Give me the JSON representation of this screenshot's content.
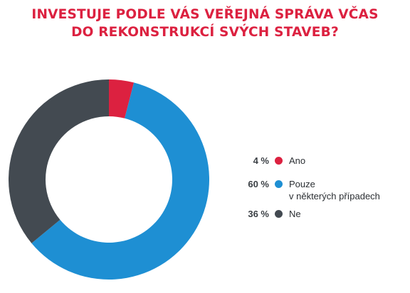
{
  "chart_data": {
    "type": "pie",
    "variant": "donut",
    "title_lines": [
      "INVESTUJE PODLE VÁS VEŘEJNÁ SPRÁVA VČAS",
      "DO REKONSTRUKCÍ SVÝCH STAVEB?"
    ],
    "slices": [
      {
        "label_lines": [
          "Ano"
        ],
        "value": 4,
        "display": "4 %",
        "color": "#dc2140"
      },
      {
        "label_lines": [
          "Pouze",
          "v některých případech"
        ],
        "value": 60,
        "display": "60 %",
        "color": "#1e8fd3"
      },
      {
        "label_lines": [
          "Ne"
        ],
        "value": 36,
        "display": "36 %",
        "color": "#434a51"
      }
    ],
    "legend_position": "right"
  }
}
